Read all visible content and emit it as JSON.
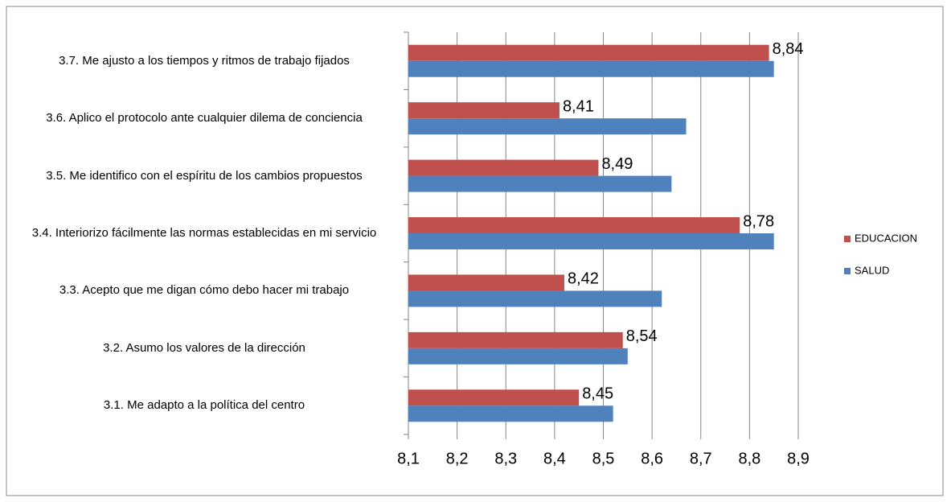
{
  "chart_data": {
    "type": "bar",
    "orientation": "horizontal",
    "categories": [
      "3.1. Me adapto a la política del centro",
      "3.2. Asumo los valores de la dirección",
      "3.3. Acepto que me digan cómo debo hacer mi trabajo",
      "3.4. Interiorizo fácilmente las normas establecidas en mi servicio",
      "3.5. Me identifico con el espíritu de los cambios propuestos",
      "3.6. Aplico el protocolo ante cualquier dilema de conciencia",
      "3.7. Me ajusto a los tiempos y ritmos de trabajo fijados"
    ],
    "series": [
      {
        "name": "EDUCACION",
        "color": "#c0504d",
        "values": [
          8.45,
          8.54,
          8.42,
          8.78,
          8.49,
          8.41,
          8.84
        ],
        "value_labels": [
          "8,45",
          "8,54",
          "8,42",
          "8,78",
          "8,49",
          "8,41",
          "8,84"
        ]
      },
      {
        "name": "SALUD",
        "color": "#4f81bd",
        "values": [
          8.52,
          8.55,
          8.62,
          8.85,
          8.64,
          8.67,
          8.85
        ]
      }
    ],
    "xlim": [
      8.1,
      8.9
    ],
    "xticks": [
      {
        "value": 8.1,
        "label": "8,1"
      },
      {
        "value": 8.2,
        "label": "8,2"
      },
      {
        "value": 8.3,
        "label": "8,3"
      },
      {
        "value": 8.4,
        "label": "8,4"
      },
      {
        "value": 8.5,
        "label": "8,5"
      },
      {
        "value": 8.6,
        "label": "8,6"
      },
      {
        "value": 8.7,
        "label": "8,7"
      },
      {
        "value": 8.8,
        "label": "8,8"
      },
      {
        "value": 8.9,
        "label": "8,9"
      }
    ],
    "grid": true,
    "legend": "right"
  }
}
